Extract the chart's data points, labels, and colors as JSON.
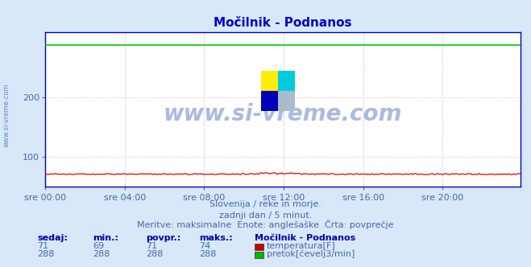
{
  "title": "Močilnik - Podnanos",
  "bg_color": "#d8e8f8",
  "plot_bg_color": "#ffffff",
  "grid_color_h": "#ffaaaa",
  "grid_color_v": "#aaaaff",
  "title_color": "#0000cc",
  "watermark": "www.si-vreme.com",
  "watermark_color": "#4466bb",
  "subtitle_lines": [
    "Slovenija / reke in morje.",
    "zadnji dan / 5 minut.",
    "Meritve: maksimalne  Enote: anglešaške  Črta: povprečje"
  ],
  "table_header": [
    "sedaj:",
    "min.:",
    "povpr.:",
    "maks.:",
    "Močilnik - Podnanos"
  ],
  "table_rows": [
    [
      "71",
      "69",
      "71",
      "74",
      "temperatura[F]",
      "#cc0000"
    ],
    [
      "288",
      "288",
      "288",
      "288",
      "pretok[čevelj3/min]",
      "#00bb00"
    ]
  ],
  "x_tick_labels": [
    "sre 00:00",
    "sre 04:00",
    "sre 08:00",
    "sre 12:00",
    "sre 16:00",
    "sre 20:00"
  ],
  "x_tick_positions": [
    0,
    48,
    96,
    144,
    192,
    240
  ],
  "ylim": [
    50,
    310
  ],
  "yticks": [
    100,
    200
  ],
  "n_points": 288,
  "temp_value": 71,
  "temp_min": 69,
  "temp_max": 74,
  "flow_value": 288,
  "temp_line_color": "#dd0000",
  "flow_line_color": "#00cc00",
  "tick_color": "#4466aa",
  "border_color": "#0000cc",
  "logo_colors": [
    "#ffee00",
    "#00ccdd",
    "#0000bb",
    "#aabbcc"
  ]
}
